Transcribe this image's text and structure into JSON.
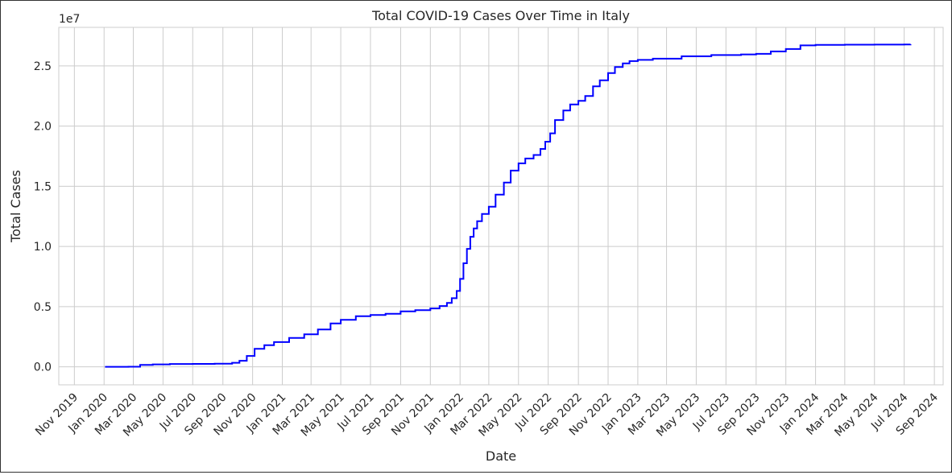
{
  "chart_data": {
    "type": "line",
    "title": "Total COVID-19 Cases Over Time in Italy",
    "xlabel": "Date",
    "ylabel": "Total Cases",
    "y_offset_label": "1e7",
    "y_scale": 10000000,
    "ylim": [
      -1500000,
      28200000
    ],
    "xlim": [
      "2019-09-30",
      "2024-09-19"
    ],
    "grid": true,
    "line_color": "#0000ff",
    "x_ticks": [
      {
        "date": "2019-11-01",
        "label": "Nov 2019"
      },
      {
        "date": "2020-01-01",
        "label": "Jan 2020"
      },
      {
        "date": "2020-03-01",
        "label": "Mar 2020"
      },
      {
        "date": "2020-05-01",
        "label": "May 2020"
      },
      {
        "date": "2020-07-01",
        "label": "Jul 2020"
      },
      {
        "date": "2020-09-01",
        "label": "Sep 2020"
      },
      {
        "date": "2020-11-01",
        "label": "Nov 2020"
      },
      {
        "date": "2021-01-01",
        "label": "Jan 2021"
      },
      {
        "date": "2021-03-01",
        "label": "Mar 2021"
      },
      {
        "date": "2021-05-01",
        "label": "May 2021"
      },
      {
        "date": "2021-07-01",
        "label": "Jul 2021"
      },
      {
        "date": "2021-09-01",
        "label": "Sep 2021"
      },
      {
        "date": "2021-11-01",
        "label": "Nov 2021"
      },
      {
        "date": "2022-01-01",
        "label": "Jan 2022"
      },
      {
        "date": "2022-03-01",
        "label": "Mar 2022"
      },
      {
        "date": "2022-05-01",
        "label": "May 2022"
      },
      {
        "date": "2022-07-01",
        "label": "Jul 2022"
      },
      {
        "date": "2022-09-01",
        "label": "Sep 2022"
      },
      {
        "date": "2022-11-01",
        "label": "Nov 2022"
      },
      {
        "date": "2023-01-01",
        "label": "Jan 2023"
      },
      {
        "date": "2023-03-01",
        "label": "Mar 2023"
      },
      {
        "date": "2023-05-01",
        "label": "May 2023"
      },
      {
        "date": "2023-07-01",
        "label": "Jul 2023"
      },
      {
        "date": "2023-09-01",
        "label": "Sep 2023"
      },
      {
        "date": "2023-11-01",
        "label": "Nov 2023"
      },
      {
        "date": "2024-01-01",
        "label": "Jan 2024"
      },
      {
        "date": "2024-03-01",
        "label": "Mar 2024"
      },
      {
        "date": "2024-05-01",
        "label": "May 2024"
      },
      {
        "date": "2024-07-01",
        "label": "Jul 2024"
      },
      {
        "date": "2024-09-01",
        "label": "Sep 2024"
      }
    ],
    "y_ticks": [
      {
        "value": 0,
        "label": "0.0"
      },
      {
        "value": 5000000,
        "label": "0.5"
      },
      {
        "value": 10000000,
        "label": "1.0"
      },
      {
        "value": 15000000,
        "label": "1.5"
      },
      {
        "value": 20000000,
        "label": "2.0"
      },
      {
        "value": 25000000,
        "label": "2.5"
      }
    ],
    "series": [
      {
        "x": [
          "2020-01-03",
          "2020-02-20",
          "2020-03-15",
          "2020-04-10",
          "2020-05-15",
          "2020-07-01",
          "2020-08-15",
          "2020-09-20",
          "2020-10-05",
          "2020-10-20",
          "2020-11-05",
          "2020-11-25",
          "2020-12-15",
          "2021-01-15",
          "2021-02-15",
          "2021-03-15",
          "2021-04-10",
          "2021-05-01",
          "2021-06-01",
          "2021-07-01",
          "2021-08-01",
          "2021-09-01",
          "2021-10-01",
          "2021-11-01",
          "2021-11-20",
          "2021-12-05",
          "2021-12-15",
          "2021-12-25",
          "2022-01-01",
          "2022-01-08",
          "2022-01-15",
          "2022-01-22",
          "2022-01-29",
          "2022-02-05",
          "2022-02-15",
          "2022-03-01",
          "2022-03-15",
          "2022-04-01",
          "2022-04-15",
          "2022-05-01",
          "2022-05-15",
          "2022-06-01",
          "2022-06-15",
          "2022-06-25",
          "2022-07-05",
          "2022-07-15",
          "2022-08-01",
          "2022-08-15",
          "2022-09-01",
          "2022-09-15",
          "2022-10-01",
          "2022-10-15",
          "2022-11-01",
          "2022-11-15",
          "2022-12-01",
          "2022-12-15",
          "2023-01-01",
          "2023-02-01",
          "2023-04-01",
          "2023-06-01",
          "2023-08-01",
          "2023-09-01",
          "2023-10-01",
          "2023-11-01",
          "2023-12-01",
          "2024-01-01",
          "2024-03-01",
          "2024-05-01",
          "2024-07-01",
          "2024-07-14"
        ],
        "y": [
          1000,
          3000,
          150000,
          200000,
          230000,
          240000,
          260000,
          330000,
          500000,
          900000,
          1500000,
          1800000,
          2050000,
          2400000,
          2700000,
          3100000,
          3600000,
          3900000,
          4200000,
          4300000,
          4400000,
          4600000,
          4700000,
          4850000,
          5050000,
          5300000,
          5700000,
          6300000,
          7300000,
          8600000,
          9800000,
          10800000,
          11500000,
          12100000,
          12700000,
          13300000,
          14300000,
          15300000,
          16300000,
          16900000,
          17300000,
          17600000,
          18100000,
          18700000,
          19400000,
          20500000,
          21300000,
          21800000,
          22100000,
          22500000,
          23300000,
          23800000,
          24400000,
          24900000,
          25200000,
          25400000,
          25500000,
          25600000,
          25800000,
          25900000,
          25950000,
          26000000,
          26200000,
          26400000,
          26700000,
          26750000,
          26760000,
          26770000,
          26780000,
          26800000
        ]
      }
    ]
  }
}
